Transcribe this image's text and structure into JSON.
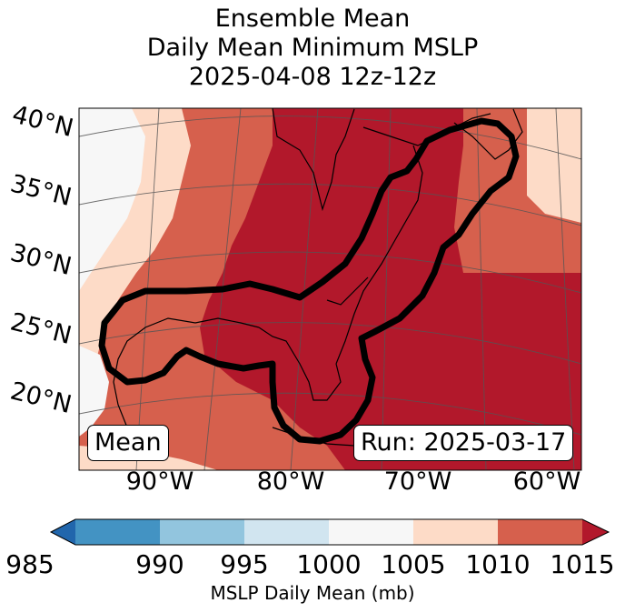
{
  "title": {
    "line1": "Ensemble Mean",
    "line2": "Daily Mean Minimum MSLP",
    "line3": "2025-04-08 12z-12z"
  },
  "lat_labels": [
    "40°N",
    "35°N",
    "30°N",
    "25°N",
    "20°N"
  ],
  "lon_labels": [
    "90°W",
    "80°W",
    "70°W",
    "60°W"
  ],
  "boxes": {
    "left": "Mean",
    "right": "Run: 2025-03-17"
  },
  "colorbar": {
    "ticks": [
      "985",
      "990",
      "995",
      "1000",
      "1005",
      "1010",
      "1015"
    ],
    "label": "MSLP Daily Mean (mb)",
    "colors": [
      "#2166ac",
      "#4393c3",
      "#92c5de",
      "#d1e5f0",
      "#f7f7f7",
      "#fddbc7",
      "#d6604d",
      "#b2182b"
    ]
  },
  "chart_data": {
    "type": "heatmap",
    "title": "Ensemble Mean Daily Mean Minimum MSLP 2025-04-08 12z-12z",
    "variable": "MSLP Daily Mean (mb)",
    "levels": [
      985,
      990,
      995,
      1000,
      1005,
      1010,
      1015
    ],
    "extend": "both",
    "lat_ticks": [
      40,
      35,
      30,
      25,
      20
    ],
    "lon_ticks": [
      -90,
      -80,
      -70,
      -60
    ],
    "contour_outline": "ensemble mean region outline (black)",
    "run": "2025-03-17"
  }
}
